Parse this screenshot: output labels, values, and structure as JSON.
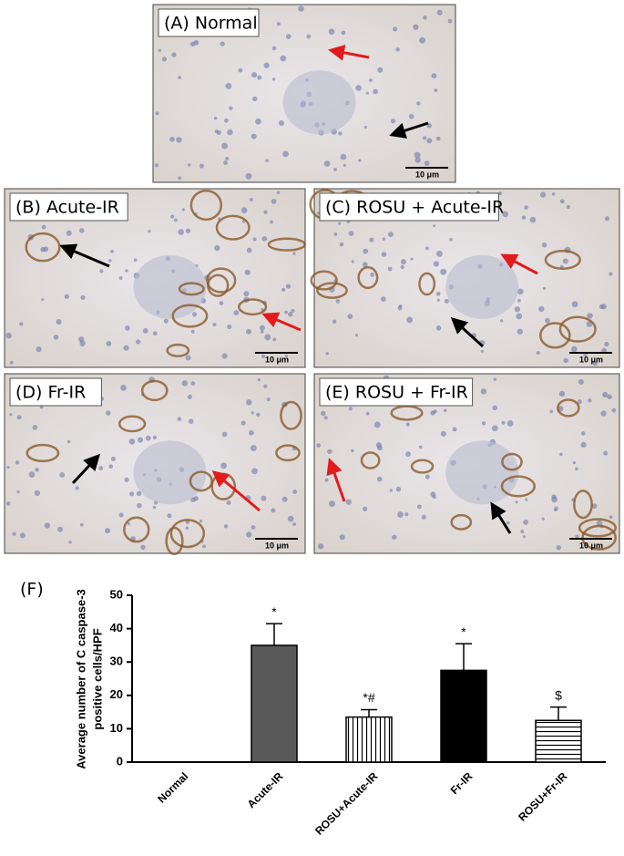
{
  "panels": [
    {
      "label": "(A) Normal",
      "scale": "10 μm"
    },
    {
      "label": "(B) Acute-IR",
      "scale": "10 μm"
    },
    {
      "label": "(C) ROSU + Acute-IR",
      "scale": "10 μm"
    },
    {
      "label": "(D) Fr-IR",
      "scale": "10 μm"
    },
    {
      "label": "(E) ROSU + Fr-IR",
      "scale": "10 μm"
    }
  ],
  "chart_data": {
    "type": "bar",
    "panel_label": "(F)",
    "ylabel": [
      "Average number of C caspase-3",
      "positive cells/HPF"
    ],
    "categories": [
      "Normal",
      "Acute-IR",
      "ROSU+Acute-IR",
      "Fr-IR",
      "ROSU+Fr-IR"
    ],
    "values": [
      0,
      35,
      13.5,
      27.5,
      12.5
    ],
    "errors": [
      0,
      6.5,
      2.2,
      8,
      4
    ],
    "annotations": [
      null,
      "*",
      "*#",
      "*",
      "$"
    ],
    "colors": [
      "#ffffff",
      "#595959",
      "#ffffff",
      "#000000",
      "#ffffff"
    ],
    "hatch": [
      null,
      null,
      "vertical",
      null,
      "horizontal"
    ],
    "ylim": [
      0,
      50
    ],
    "yticks": [
      0,
      10,
      20,
      30,
      40,
      50
    ]
  }
}
